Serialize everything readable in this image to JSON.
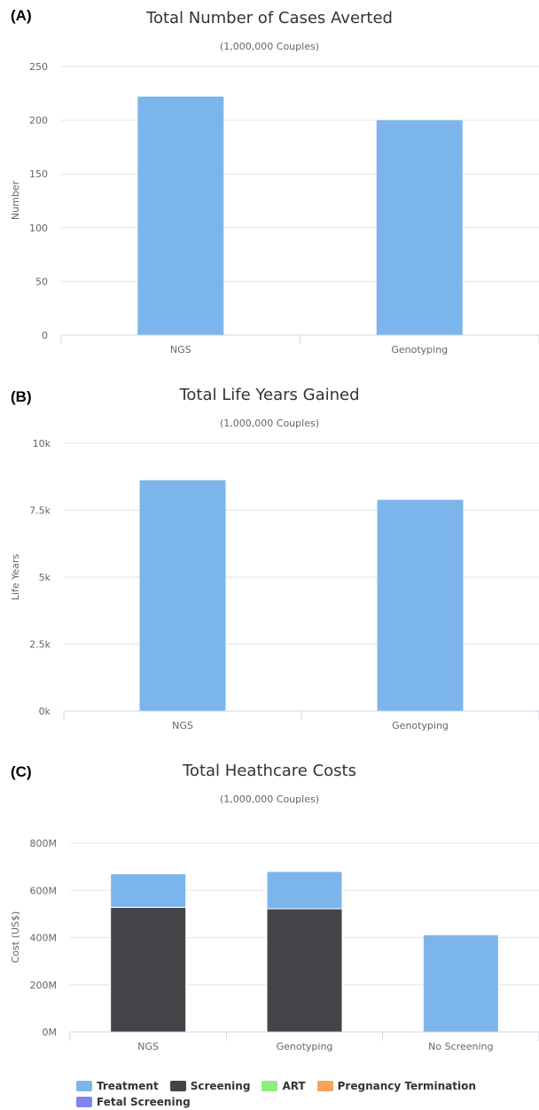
{
  "panels": [
    {
      "label": "(A)",
      "title": "Total Number of Cases Averted",
      "subtitle": "(1,000,000 Couples)"
    },
    {
      "label": "(B)",
      "title": "Total Life Years Gained",
      "subtitle": "(1,000,000 Couples)"
    },
    {
      "label": "(C)",
      "title": "Total Heathcare Costs",
      "subtitle": "(1,000,000 Couples)"
    }
  ],
  "colors": {
    "Treatment": "#7cb5ec",
    "Screening": "#434348",
    "ART": "#90ed7d",
    "Pregnancy Termination": "#f7a35c",
    "Fetal Screening": "#8085e9"
  },
  "chart_data": [
    {
      "type": "bar",
      "title": "Total Number of Cases Averted",
      "subtitle": "(1,000,000 Couples)",
      "categories": [
        "NGS",
        "Genotyping"
      ],
      "values": [
        222,
        200
      ],
      "ylabel": "Number",
      "ylim": [
        0,
        250
      ],
      "yticks": [
        0,
        50,
        100,
        150,
        200,
        250
      ],
      "ytick_labels": [
        "0",
        "50",
        "100",
        "150",
        "200",
        "250"
      ],
      "grid": true
    },
    {
      "type": "bar",
      "title": "Total Life Years Gained",
      "subtitle": "(1,000,000 Couples)",
      "categories": [
        "NGS",
        "Genotyping"
      ],
      "values": [
        8620,
        7890
      ],
      "ylabel": "Life Years",
      "ylim": [
        0,
        10000
      ],
      "yticks": [
        0,
        2500,
        5000,
        7500,
        10000
      ],
      "ytick_labels": [
        "0k",
        "2.5k",
        "5k",
        "7.5k",
        "10k"
      ],
      "grid": true
    },
    {
      "type": "bar",
      "stacked": true,
      "title": "Total Heathcare Costs",
      "subtitle": "(1,000,000 Couples)",
      "categories": [
        "NGS",
        "Genotyping",
        "No Screening"
      ],
      "series": [
        {
          "name": "Treatment",
          "values": [
            142,
            158,
            412
          ]
        },
        {
          "name": "Screening",
          "values": [
            528,
            522,
            0
          ]
        },
        {
          "name": "ART",
          "values": [
            0,
            0,
            0
          ]
        },
        {
          "name": "Pregnancy Termination",
          "values": [
            0,
            0,
            0
          ]
        },
        {
          "name": "Fetal Screening",
          "values": [
            0,
            0,
            0
          ]
        }
      ],
      "ylabel": "Cost (US$)",
      "ylim": [
        0,
        800
      ],
      "yticks": [
        0,
        200,
        400,
        600,
        800
      ],
      "ytick_labels": [
        "0M",
        "200M",
        "400M",
        "600M",
        "800M"
      ],
      "legend_position": "bottom",
      "grid": true
    }
  ]
}
